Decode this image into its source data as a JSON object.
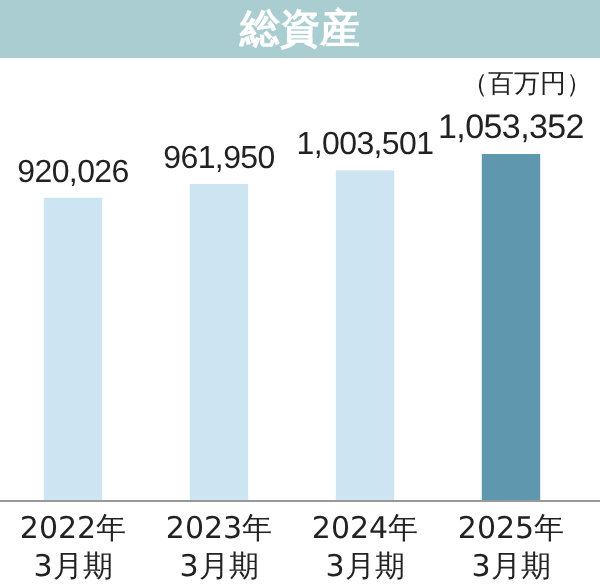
{
  "chart_data": {
    "type": "bar",
    "title": "総資産",
    "annotations": [
      "（百万円）"
    ],
    "categories": [
      "2022年\n3月期",
      "2023年\n3月期",
      "2024年\n3月期",
      "2025年\n3月期"
    ],
    "values": [
      920026,
      961950,
      1003501,
      1053352
    ],
    "colors": [
      "#cde4f2",
      "#cde4f2",
      "#cde4f2",
      "#5f97af"
    ],
    "value_labels": [
      "920,026",
      "961,950",
      "1,003,501",
      "1,053,352"
    ]
  }
}
